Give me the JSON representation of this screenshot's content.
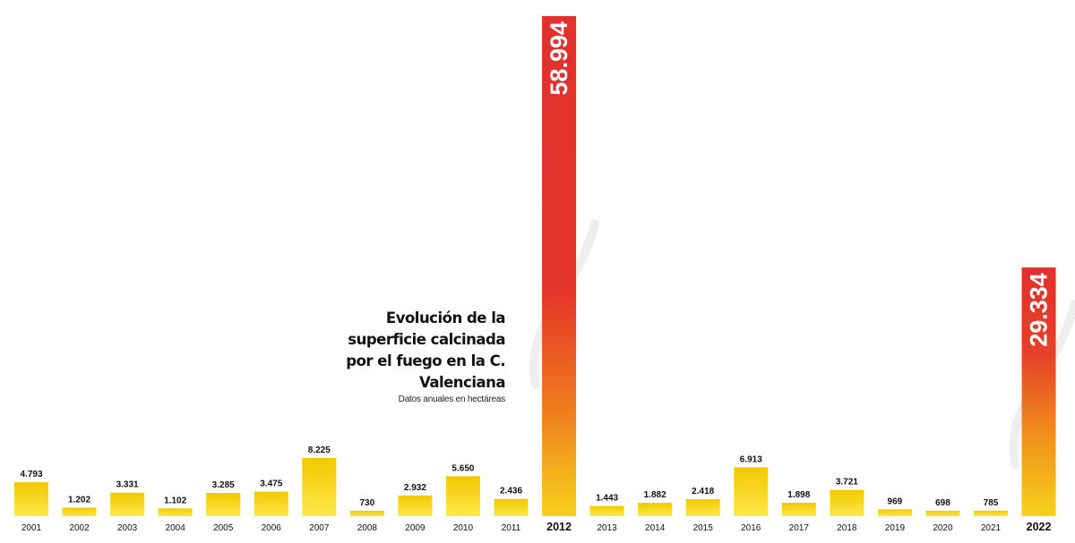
{
  "title": "Evolución de la superficie calcinada por el fuego en la C. Valenciana",
  "subtitle": "Datos anuales en hectáreas",
  "colors": {
    "normal_top": "#f2c800",
    "normal_bottom": "#fde84a",
    "highlight_top": "#e2302c",
    "highlight_mid": "#ef7a1e",
    "highlight_bottom": "#f7cf18",
    "text": "#111111"
  },
  "chart_data": {
    "type": "bar",
    "title": "Evolución de la superficie calcinada por el fuego en la C. Valenciana",
    "subtitle": "Datos anuales en hectáreas",
    "categories": [
      "2001",
      "2002",
      "2003",
      "2004",
      "2005",
      "2006",
      "2007",
      "2008",
      "2009",
      "2010",
      "2011",
      "2012",
      "2013",
      "2014",
      "2015",
      "2016",
      "2017",
      "2018",
      "2019",
      "2020",
      "2021",
      "2022"
    ],
    "values": [
      4793,
      1202,
      3331,
      1102,
      3285,
      3475,
      8225,
      730,
      2932,
      5650,
      2436,
      58994,
      1443,
      1882,
      2418,
      6913,
      1898,
      3721,
      969,
      698,
      785,
      29334
    ],
    "labels": [
      "4.793",
      "1.202",
      "3.331",
      "1.102",
      "3.285",
      "3.475",
      "8.225",
      "730",
      "2.932",
      "5.650",
      "2.436",
      "58.994",
      "1.443",
      "1.882",
      "2.418",
      "6.913",
      "1.898",
      "3.721",
      "969",
      "698",
      "785",
      "29.334"
    ],
    "highlighted": [
      "2012",
      "2022"
    ],
    "ylim": [
      0,
      58994
    ],
    "xlabel": "",
    "ylabel": "",
    "grid": false,
    "legend": "none"
  }
}
